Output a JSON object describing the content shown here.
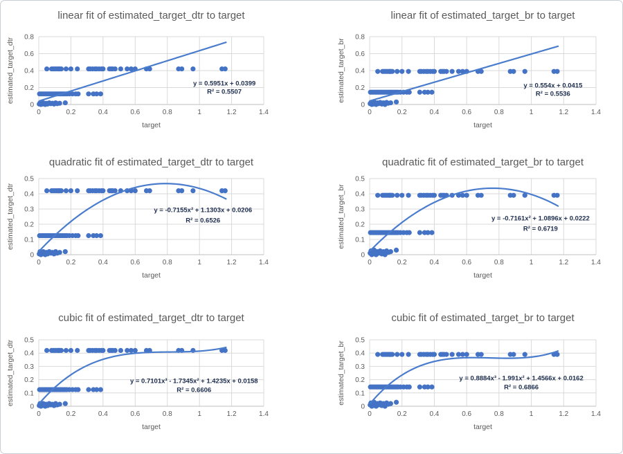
{
  "page": {
    "background": "#ffffff",
    "border_color": "#c9ced6"
  },
  "style": {
    "point_color": "#4472C4",
    "trendline_color": "#4a7ccd",
    "grid_color": "#D9D9D9",
    "axis_line_color": "#BFBFBF",
    "text_color": "#595959",
    "equation_color": "#203050"
  },
  "chart_data": {
    "type": "scatter-grid",
    "grid": "2 columns x 3 rows",
    "x": [
      0.05,
      0.08,
      0.09,
      0.1,
      0.11,
      0.12,
      0.125,
      0.13,
      0.14,
      0.17,
      0.2,
      0.24,
      0.31,
      0.32,
      0.335,
      0.35,
      0.36,
      0.375,
      0.39,
      0.4,
      0.44,
      0.45,
      0.46,
      0.475,
      0.51,
      0.55,
      0.575,
      0.6,
      0.67,
      0.69,
      0.87,
      0.89,
      0.96,
      1.14,
      1.16,
      0.005,
      0.015,
      0.025,
      0.035,
      0.045,
      0.055,
      0.065,
      0.075,
      0.085,
      0.095,
      0.105,
      0.115,
      0.125,
      0.135,
      0.145,
      0.155,
      0.165,
      0.175,
      0.19,
      0.21,
      0.23,
      0.245,
      0.31,
      0.34,
      0.36,
      0.385,
      0.003,
      0.008,
      0.013,
      0.018,
      0.023,
      0.028,
      0.033,
      0.04,
      0.047,
      0.055,
      0.065,
      0.075,
      0.085,
      0.095,
      0.105,
      0.115,
      0.13,
      0.165
    ],
    "dtr_y": [
      0.42,
      0.42,
      0.42,
      0.42,
      0.42,
      0.42,
      0.42,
      0.42,
      0.42,
      0.42,
      0.42,
      0.42,
      0.42,
      0.42,
      0.42,
      0.42,
      0.42,
      0.42,
      0.42,
      0.42,
      0.42,
      0.42,
      0.42,
      0.42,
      0.42,
      0.42,
      0.42,
      0.42,
      0.42,
      0.42,
      0.42,
      0.42,
      0.42,
      0.42,
      0.42,
      0.125,
      0.125,
      0.125,
      0.125,
      0.125,
      0.125,
      0.125,
      0.125,
      0.125,
      0.125,
      0.125,
      0.125,
      0.125,
      0.125,
      0.125,
      0.125,
      0.125,
      0.125,
      0.125,
      0.125,
      0.125,
      0.125,
      0.125,
      0.125,
      0.125,
      0.125,
      0.005,
      0.02,
      0,
      0.015,
      0.005,
      0.02,
      0.01,
      0,
      0.015,
      0.005,
      0.02,
      0.01,
      0.015,
      0.005,
      0.02,
      0.01,
      0.015,
      0.02
    ],
    "br_y": [
      0.39,
      0.39,
      0.39,
      0.39,
      0.39,
      0.39,
      0.39,
      0.39,
      0.39,
      0.39,
      0.39,
      0.39,
      0.39,
      0.39,
      0.39,
      0.39,
      0.39,
      0.39,
      0.39,
      0.39,
      0.39,
      0.39,
      0.39,
      0.39,
      0.39,
      0.39,
      0.39,
      0.39,
      0.39,
      0.39,
      0.39,
      0.39,
      0.39,
      0.39,
      0.39,
      0.145,
      0.145,
      0.145,
      0.145,
      0.145,
      0.145,
      0.145,
      0.145,
      0.145,
      0.145,
      0.145,
      0.145,
      0.145,
      0.145,
      0.145,
      0.145,
      0.145,
      0.145,
      0.145,
      0.145,
      0.145,
      0.145,
      0.145,
      0.145,
      0.145,
      0.145,
      0.01,
      0.025,
      0,
      0.02,
      0.005,
      0.03,
      0.015,
      0,
      0.02,
      0.01,
      0.025,
      0.005,
      0.02,
      0,
      0.025,
      0.015,
      0.02,
      0.03
    ],
    "charts": [
      {
        "id": "linear-dtr",
        "type": "scatter",
        "title": "linear fit of estimated_target_dtr to target",
        "xlabel": "target",
        "ylabel": "estimated_target_dtr",
        "xlim": [
          0,
          1.4
        ],
        "ylim": [
          0,
          0.8
        ],
        "xticks": [
          0,
          0.2,
          0.4,
          0.6,
          0.8,
          1,
          1.2,
          1.4
        ],
        "yticks": [
          0,
          0.2,
          0.4,
          0.6,
          0.8
        ],
        "y_key": "dtr_y",
        "trendline": {
          "kind": "linear",
          "coeffs_ascending": [
            0.0399,
            0.5951
          ],
          "x_range": [
            0.005,
            1.165
          ]
        },
        "equation": "y = 0.5951x + 0.0399",
        "r2": "R² = 0.5507",
        "eq_pos": {
          "fx": 0.825,
          "fy": 0.72,
          "fy2": 0.84
        }
      },
      {
        "id": "linear-br",
        "type": "scatter",
        "title": "linear fit of estimated_target_br to target",
        "xlabel": "target",
        "ylabel": "estimated_target_br",
        "xlim": [
          0,
          1.4
        ],
        "ylim": [
          0,
          0.8
        ],
        "xticks": [
          0,
          0.2,
          0.4,
          0.6,
          0.8,
          1,
          1.2,
          1.4
        ],
        "yticks": [
          0,
          0.2,
          0.4,
          0.6,
          0.8
        ],
        "y_key": "br_y",
        "trendline": {
          "kind": "linear",
          "coeffs_ascending": [
            0.0415,
            0.554
          ],
          "x_range": [
            0.005,
            1.165
          ]
        },
        "equation": "y = 0.554x + 0.0415",
        "r2": "R² = 0.5536",
        "eq_pos": {
          "fx": 0.81,
          "fy": 0.75,
          "fy2": 0.87
        }
      },
      {
        "id": "quadratic-dtr",
        "type": "scatter",
        "title": "quadratic fit of estimated_target_dtr to target",
        "xlabel": "target",
        "ylabel": "estimated_target_dtr",
        "xlim": [
          0,
          1.4
        ],
        "ylim": [
          0,
          0.5
        ],
        "xticks": [
          0,
          0.2,
          0.4,
          0.6,
          0.8,
          1,
          1.2,
          1.4
        ],
        "yticks": [
          0,
          0.1,
          0.2,
          0.3,
          0.4,
          0.5
        ],
        "y_key": "dtr_y",
        "trendline": {
          "kind": "quadratic",
          "coeffs_ascending": [
            0.0206,
            1.1303,
            -0.7155
          ],
          "x_range": [
            0.005,
            1.165
          ]
        },
        "equation": "y = -0.7155x² + 1.1303x + 0.0206",
        "r2": "R² = 0.6526",
        "eq_pos": {
          "fx": 0.73,
          "fy": 0.44,
          "fy2": 0.575
        }
      },
      {
        "id": "quadratic-br",
        "type": "scatter",
        "title": "quadratic fit of estimated_target_br to target",
        "xlabel": "target",
        "ylabel": "estimated_target_br",
        "xlim": [
          0,
          1.4
        ],
        "ylim": [
          0,
          0.5
        ],
        "xticks": [
          0,
          0.2,
          0.4,
          0.6,
          0.8,
          1,
          1.2,
          1.4
        ],
        "yticks": [
          0,
          0.1,
          0.2,
          0.3,
          0.4,
          0.5
        ],
        "y_key": "br_y",
        "trendline": {
          "kind": "quadratic",
          "coeffs_ascending": [
            0.0222,
            1.0896,
            -0.7161
          ],
          "x_range": [
            0.005,
            1.165
          ]
        },
        "equation": "y = -0.7161x² + 1.0896x + 0.0222",
        "r2": "R² = 0.6719",
        "eq_pos": {
          "fx": 0.755,
          "fy": 0.55,
          "fy2": 0.685
        }
      },
      {
        "id": "cubic-dtr",
        "type": "scatter",
        "title": "cubic fit of estimated_target_dtr to target",
        "xlabel": "target",
        "ylabel": "estimated_target_dtr",
        "xlim": [
          0,
          1.4
        ],
        "ylim": [
          0,
          0.5
        ],
        "xticks": [
          0,
          0.2,
          0.4,
          0.6,
          0.8,
          1,
          1.2,
          1.4
        ],
        "yticks": [
          0,
          0.1,
          0.2,
          0.3,
          0.4,
          0.5
        ],
        "y_key": "dtr_y",
        "trendline": {
          "kind": "cubic",
          "coeffs_ascending": [
            0.0158,
            1.4235,
            -1.7345,
            0.7101
          ],
          "x_range": [
            0.005,
            1.165
          ]
        },
        "equation": "y = 0.7101x³ - 1.7345x² + 1.4235x + 0.0158",
        "r2": "R² = 0.6606",
        "eq_pos": {
          "fx": 0.69,
          "fy": 0.65,
          "fy2": 0.785
        }
      },
      {
        "id": "cubic-br",
        "type": "scatter",
        "title": "cubic fit of estimated_target_br to target",
        "xlabel": "target",
        "ylabel": "estimated_target_br",
        "xlim": [
          0,
          1.4
        ],
        "ylim": [
          0,
          0.5
        ],
        "xticks": [
          0,
          0.2,
          0.4,
          0.6,
          0.8,
          1,
          1.2,
          1.4
        ],
        "yticks": [
          0,
          0.1,
          0.2,
          0.3,
          0.4,
          0.5
        ],
        "y_key": "br_y",
        "trendline": {
          "kind": "cubic",
          "coeffs_ascending": [
            0.0162,
            1.4566,
            -1.991,
            0.8884
          ],
          "x_range": [
            0.005,
            1.165
          ]
        },
        "equation": "y = 0.8884x³ - 1.991x² + 1.4566x + 0.0162",
        "r2": "R² = 0.6866",
        "eq_pos": {
          "fx": 0.67,
          "fy": 0.61,
          "fy2": 0.745
        }
      }
    ]
  }
}
